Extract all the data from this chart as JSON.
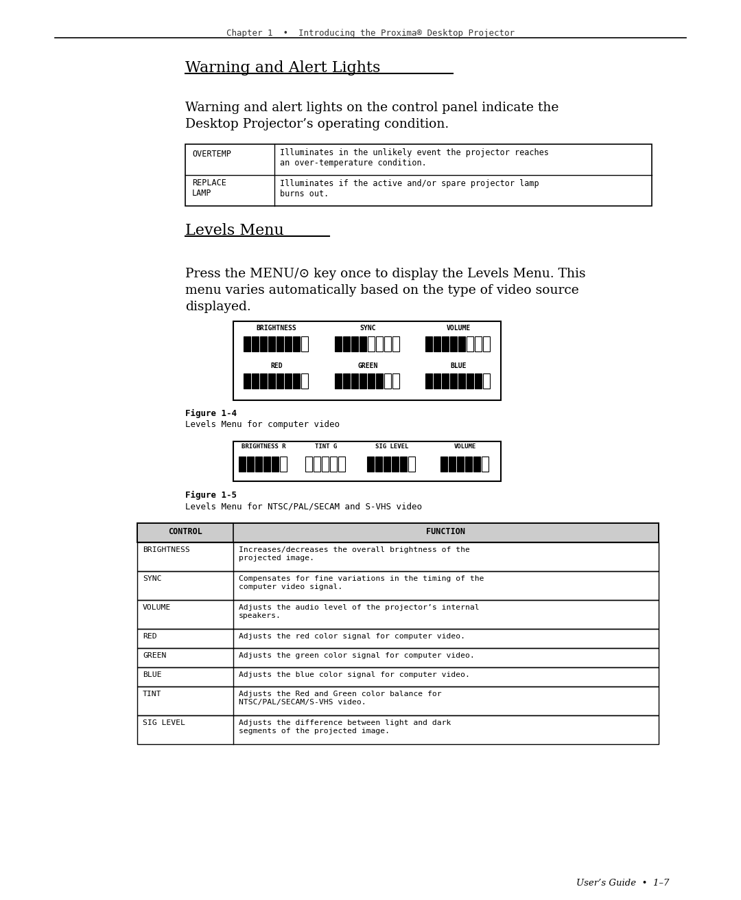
{
  "bg_color": "#ffffff",
  "header_text": "Chapter 1  •  Introducing the Proxima® Desktop Projector",
  "section1_title": "Warning and Alert Lights",
  "section1_body1": "Warning and alert lights on the control panel indicate the",
  "section1_body2": "Desktop Projector’s operating condition.",
  "table1": [
    [
      "OVERTEMP",
      "Illuminates in the unlikely event the projector reaches\nan over-temperature condition."
    ],
    [
      "REPLACE\nLAMP",
      "Illuminates if the active and/or spare projector lamp\nburns out."
    ]
  ],
  "section2_title": "Levels Menu",
  "section2_body1": "Press the MENU/⊙ key once to display the Levels Menu. This",
  "section2_body2": "menu varies automatically based on the type of video source",
  "section2_body3": "displayed.",
  "fig1_labels_top": [
    "BRIGHTNESS",
    "SYNC",
    "VOLUME"
  ],
  "fig1_labels_bot": [
    "RED",
    "GREEN",
    "BLUE"
  ],
  "fig1_caption_bold": "Figure 1-4",
  "fig1_caption": "Levels Menu for computer video",
  "fig2_labels": [
    "BRIGHTNESS R",
    "TINT G",
    "SIG LEVEL",
    "VOLUME"
  ],
  "fig2_caption_bold": "Figure 1-5",
  "fig2_caption": "Levels Menu for NTSC/PAL/SECAM and S-VHS video",
  "table2_headers": [
    "CONTROL",
    "FUNCTION"
  ],
  "table2_rows": [
    [
      "BRIGHTNESS",
      "Increases/decreases the overall brightness of the\nprojected image."
    ],
    [
      "SYNC",
      "Compensates for fine variations in the timing of the\ncomputer video signal."
    ],
    [
      "VOLUME",
      "Adjusts the audio level of the projector’s internal\nspeakers."
    ],
    [
      "RED",
      "Adjusts the red color signal for computer video."
    ],
    [
      "GREEN",
      "Adjusts the green color signal for computer video."
    ],
    [
      "BLUE",
      "Adjusts the blue color signal for computer video."
    ],
    [
      "TINT",
      "Adjusts the Red and Green color balance for\nNTSC/PAL/SECAM/S-VHS video."
    ],
    [
      "SIG LEVEL",
      "Adjusts the difference between light and dark\nsegments of the projected image."
    ]
  ],
  "footer_text": "User’s Guide  •  1–7"
}
